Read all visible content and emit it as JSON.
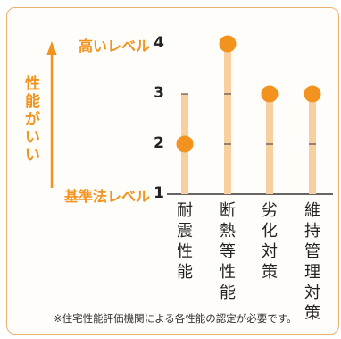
{
  "colors": {
    "accent": "#f2931f",
    "bar": "#f8cf9f",
    "axis": "#333333",
    "frame": "#e9b170"
  },
  "vertical_axis_label": "性能がいい",
  "footnote": "※住宅性能評価機関による各性能の認定が必要です。",
  "chart_data": {
    "type": "line",
    "title": "",
    "ylabel": "性能がいい",
    "ylim": [
      1,
      4
    ],
    "y_ticks": [
      {
        "value": 4,
        "label": "4",
        "caption": "高いレベル"
      },
      {
        "value": 3,
        "label": "3",
        "caption": ""
      },
      {
        "value": 2,
        "label": "2",
        "caption": ""
      },
      {
        "value": 1,
        "label": "1",
        "caption": "基準法レベル"
      }
    ],
    "categories": [
      "耐震性能",
      "断熱等性能",
      "劣化対策",
      "維持管理対策"
    ],
    "values": [
      2,
      4,
      3,
      3
    ],
    "max_levels": [
      3,
      4,
      3,
      3
    ]
  }
}
